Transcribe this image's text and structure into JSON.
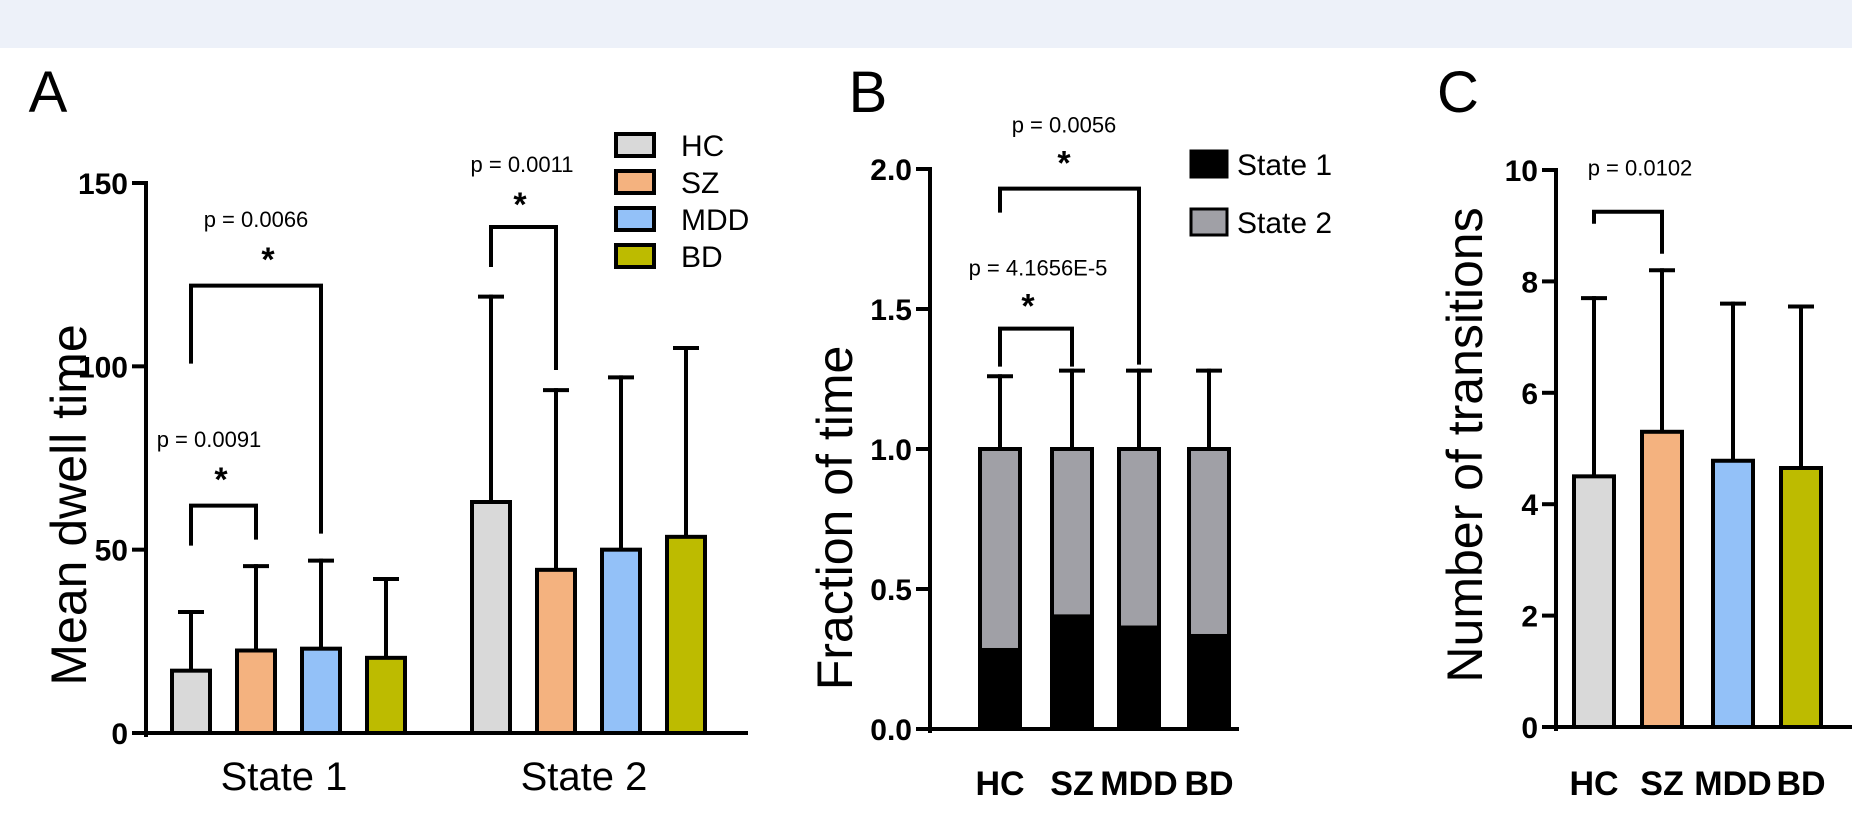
{
  "chart_data": [
    {
      "panel": "A",
      "type": "bar",
      "ylabel": "Mean dwell time",
      "ylim": [
        0,
        150
      ],
      "yticks": [
        "0",
        "50",
        "100",
        "150"
      ],
      "categories": [
        "State 1",
        "State 2"
      ],
      "series": [
        {
          "name": "HC",
          "color": "#d9d9d9",
          "values": [
            17,
            63
          ],
          "err": [
            33,
            119
          ]
        },
        {
          "name": "SZ",
          "color": "#f4b27f",
          "values": [
            22.5,
            44.5
          ],
          "err": [
            45.5,
            93.5
          ]
        },
        {
          "name": "MDD",
          "color": "#93c1f8",
          "values": [
            23,
            50
          ],
          "err": [
            47,
            97
          ]
        },
        {
          "name": "BD",
          "color": "#bdbb00",
          "values": [
            20.5,
            53.5
          ],
          "err": [
            42,
            105
          ]
        }
      ],
      "annotations": [
        {
          "label": "p = 0.0091",
          "star": "*",
          "category": 0,
          "from": 0,
          "to": 1,
          "bracket_y": 62,
          "text_y": 78
        },
        {
          "label": "p = 0.0066",
          "star": "*",
          "category": 0,
          "from": 0,
          "to": 2,
          "bracket_y": 122,
          "text_y": 138
        },
        {
          "label": "p = 0.0011",
          "star": "*",
          "category": 1,
          "from": 0,
          "to": 1,
          "bracket_y": 138,
          "text_y": 153
        }
      ]
    },
    {
      "panel": "B",
      "type": "bar",
      "stacked": true,
      "ylabel": "Fraction of time",
      "ylim": [
        0,
        2.0
      ],
      "yticks": [
        "0.0",
        "0.5",
        "1.0",
        "1.5",
        "2.0"
      ],
      "categories": [
        "HC",
        "SZ",
        "MDD",
        "BD"
      ],
      "series": [
        {
          "name": "State 1",
          "color": "#000000",
          "values": [
            0.29,
            0.41,
            0.37,
            0.34
          ]
        },
        {
          "name": "State 2",
          "color": "#a0a0a6",
          "values": [
            0.71,
            0.59,
            0.63,
            0.66
          ]
        }
      ],
      "err_top": [
        1.26,
        1.28,
        1.28,
        1.28
      ],
      "annotations": [
        {
          "label": "p = 4.1656E-5",
          "star": "*",
          "from": 0,
          "to": 1,
          "bracket_y": 1.43,
          "text_y": 1.62
        },
        {
          "label": "p = 0.0056",
          "star": "*",
          "from": 0,
          "to": 2,
          "bracket_y": 1.93,
          "text_y": 2.13
        }
      ]
    },
    {
      "panel": "C",
      "type": "bar",
      "ylabel": "Number of transitions",
      "ylim": [
        0,
        10
      ],
      "yticks": [
        "0",
        "2",
        "4",
        "6",
        "8",
        "10"
      ],
      "categories": [
        "HC",
        "SZ",
        "MDD",
        "BD"
      ],
      "colors": [
        "#d9d9d9",
        "#f4b27f",
        "#93c1f8",
        "#bdbb00"
      ],
      "values": [
        4.5,
        5.3,
        4.78,
        4.65
      ],
      "err": [
        7.7,
        8.2,
        7.6,
        7.55
      ],
      "annotations": [
        {
          "label": "p  = 0.0102",
          "from": 0,
          "to": 1,
          "bracket_y": 9.25,
          "text_y": 9.9
        }
      ]
    }
  ]
}
